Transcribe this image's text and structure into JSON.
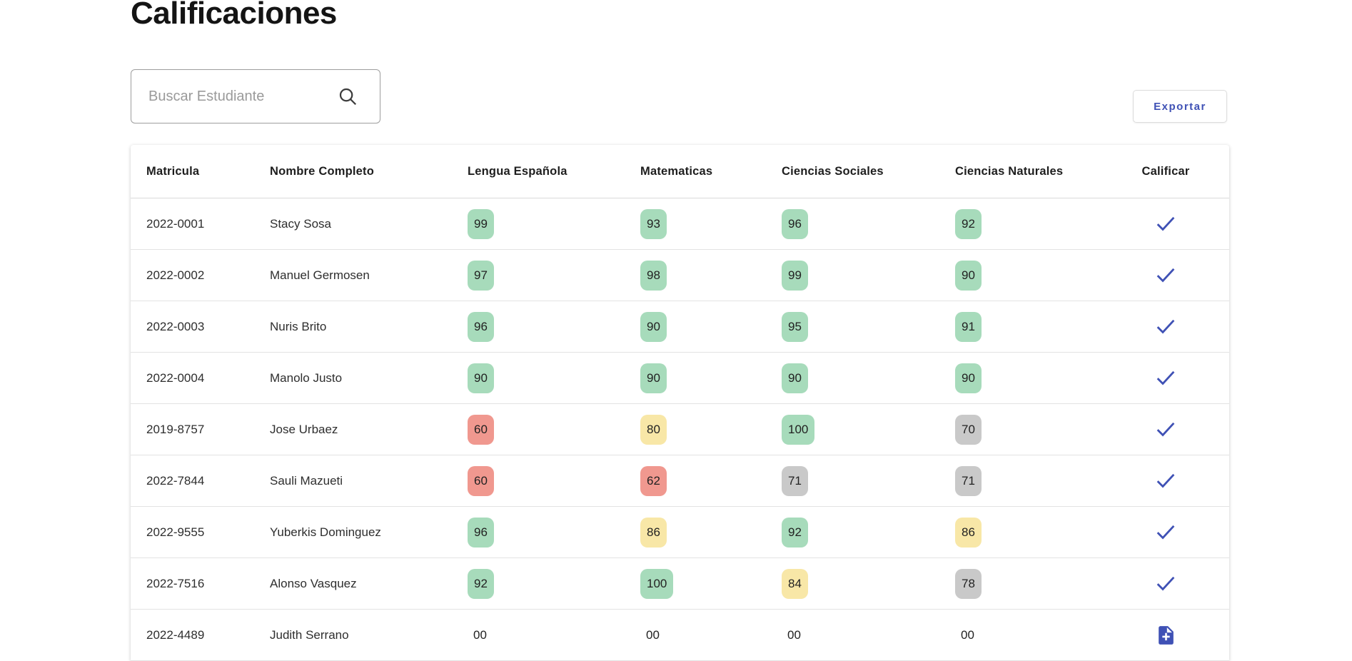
{
  "page": {
    "title": "Calificaciones"
  },
  "search": {
    "placeholder": "Buscar Estudiante",
    "icon": "search-icon"
  },
  "toolbar": {
    "export_label": "Exportar"
  },
  "theme": {
    "accent": "#3f51b5",
    "row_border": "#e3e3e3",
    "badge_colors": {
      "green": "#a7dbbb",
      "yellow": "#f8e7a7",
      "red": "#f0988f",
      "gray": "#c9c9c9",
      "none": "transparent"
    }
  },
  "table": {
    "columns": [
      "Matricula",
      "Nombre Completo",
      "Lengua Española",
      "Matematicas",
      "Ciencias Sociales",
      "Ciencias Naturales",
      "Calificar"
    ],
    "rows": [
      {
        "matricula": "2022-0001",
        "nombre": "Stacy Sosa",
        "grades": [
          {
            "value": "99",
            "level": "green"
          },
          {
            "value": "93",
            "level": "green"
          },
          {
            "value": "96",
            "level": "green"
          },
          {
            "value": "92",
            "level": "green"
          }
        ],
        "action": "check"
      },
      {
        "matricula": "2022-0002",
        "nombre": "Manuel Germosen",
        "grades": [
          {
            "value": "97",
            "level": "green"
          },
          {
            "value": "98",
            "level": "green"
          },
          {
            "value": "99",
            "level": "green"
          },
          {
            "value": "90",
            "level": "green"
          }
        ],
        "action": "check"
      },
      {
        "matricula": "2022-0003",
        "nombre": "Nuris Brito",
        "grades": [
          {
            "value": "96",
            "level": "green"
          },
          {
            "value": "90",
            "level": "green"
          },
          {
            "value": "95",
            "level": "green"
          },
          {
            "value": "91",
            "level": "green"
          }
        ],
        "action": "check"
      },
      {
        "matricula": "2022-0004",
        "nombre": "Manolo Justo",
        "grades": [
          {
            "value": "90",
            "level": "green"
          },
          {
            "value": "90",
            "level": "green"
          },
          {
            "value": "90",
            "level": "green"
          },
          {
            "value": "90",
            "level": "green"
          }
        ],
        "action": "check"
      },
      {
        "matricula": "2019-8757",
        "nombre": "Jose Urbaez",
        "grades": [
          {
            "value": "60",
            "level": "red"
          },
          {
            "value": "80",
            "level": "yellow"
          },
          {
            "value": "100",
            "level": "green"
          },
          {
            "value": "70",
            "level": "gray"
          }
        ],
        "action": "check"
      },
      {
        "matricula": "2022-7844",
        "nombre": "Sauli Mazueti",
        "grades": [
          {
            "value": "60",
            "level": "red"
          },
          {
            "value": "62",
            "level": "red"
          },
          {
            "value": "71",
            "level": "gray"
          },
          {
            "value": "71",
            "level": "gray"
          }
        ],
        "action": "check"
      },
      {
        "matricula": "2022-9555",
        "nombre": "Yuberkis Dominguez",
        "grades": [
          {
            "value": "96",
            "level": "green"
          },
          {
            "value": "86",
            "level": "yellow"
          },
          {
            "value": "92",
            "level": "green"
          },
          {
            "value": "86",
            "level": "yellow"
          }
        ],
        "action": "check"
      },
      {
        "matricula": "2022-7516",
        "nombre": "Alonso Vasquez",
        "grades": [
          {
            "value": "92",
            "level": "green"
          },
          {
            "value": "100",
            "level": "green"
          },
          {
            "value": "84",
            "level": "yellow"
          },
          {
            "value": "78",
            "level": "gray"
          }
        ],
        "action": "check"
      },
      {
        "matricula": "2022-4489",
        "nombre": "Judith Serrano",
        "grades": [
          {
            "value": "00",
            "level": "none"
          },
          {
            "value": "00",
            "level": "none"
          },
          {
            "value": "00",
            "level": "none"
          },
          {
            "value": "00",
            "level": "none"
          }
        ],
        "action": "add"
      }
    ]
  }
}
